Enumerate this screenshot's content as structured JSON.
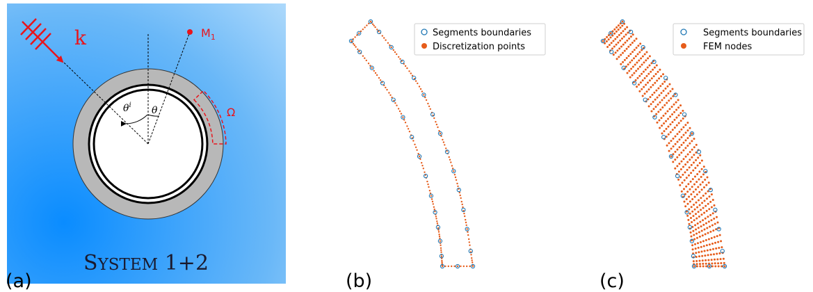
{
  "panels": {
    "a": {
      "label": "(a)",
      "wave_label": "k",
      "point_label_main": "M",
      "point_label_sub": "1",
      "region_label": "Ω",
      "angle_incident_main": "θ",
      "angle_incident_sup": "i",
      "angle_observation": "θ",
      "system_label_first": "S",
      "system_label_rest": "YSTEM",
      "system_label_num": " 1+2",
      "colors": {
        "wave": "#e8141c",
        "point": "#e8141c",
        "region": "#e8141c",
        "shell": "#b8b8b8",
        "bg_dark": "#0a8cff",
        "bg_light": "#c4e4fc"
      }
    },
    "b": {
      "label": "(b)",
      "legend": [
        "Segments boundaries",
        "Discretization points"
      ]
    },
    "c": {
      "label": "(c)",
      "legend": [
        "Segments boundaries",
        "FEM nodes"
      ]
    }
  },
  "colors": {
    "segment_marker": "#1f77b4",
    "point_marker": "#e65c1a"
  }
}
